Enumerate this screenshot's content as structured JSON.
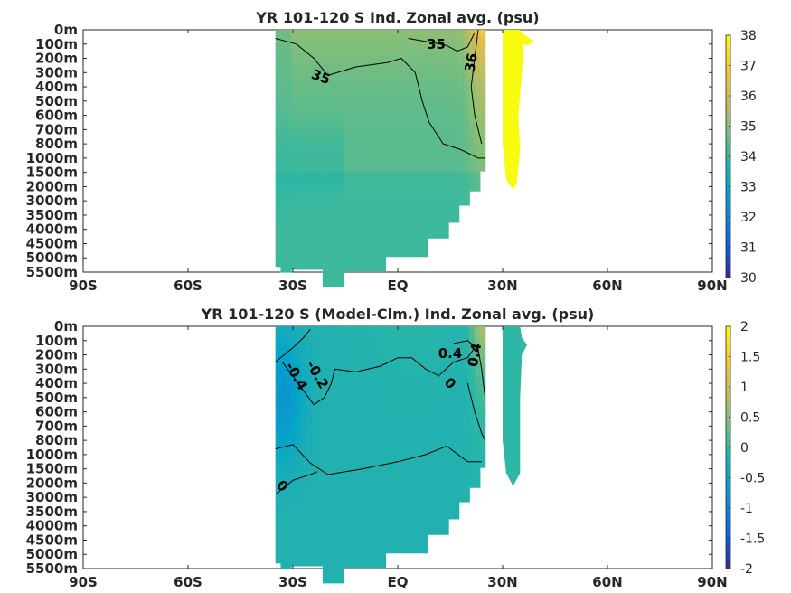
{
  "chart_data": [
    {
      "type": "heatmap",
      "title": "YR 101-120 S Ind. Zonal avg. (psu)",
      "x_ticks": [
        "90S",
        "60S",
        "30S",
        "EQ",
        "30N",
        "60N",
        "90N"
      ],
      "xlim": [
        -90,
        90
      ],
      "y_ticks": [
        "0m",
        "100m",
        "200m",
        "300m",
        "400m",
        "500m",
        "600m",
        "700m",
        "800m",
        "1000m",
        "1500m",
        "2000m",
        "3000m",
        "3500m",
        "4000m",
        "4500m",
        "5000m",
        "5500m"
      ],
      "colorbar": {
        "min": 30,
        "max": 38,
        "ticks": [
          "30",
          "31",
          "32",
          "33",
          "34",
          "35",
          "36",
          "37",
          "38"
        ]
      },
      "colormap": [
        "#352a87",
        "#0f5cdd",
        "#1481d6",
        "#06a4ca",
        "#2eb7a4",
        "#87bf77",
        "#d1bb59",
        "#fec832",
        "#f9fb0e"
      ],
      "contour_labels": [
        {
          "text": "35",
          "lat": 11,
          "depth_index": 1.0,
          "rotation": 0
        },
        {
          "text": "35",
          "lat": -22,
          "depth_index": 3.3,
          "rotation": 20
        },
        {
          "text": "36",
          "lat": 21,
          "depth_index": 2.3,
          "rotation": -80
        }
      ],
      "ocean_region": {
        "lat_min": -35,
        "lat_max": 25
      },
      "marginal_sea": {
        "lat_min": 30,
        "lat_max": 40,
        "value": 39
      }
    },
    {
      "type": "heatmap",
      "title": "YR 101-120 S (Model-Clm.) Ind. Zonal avg. (psu)",
      "x_ticks": [
        "90S",
        "60S",
        "30S",
        "EQ",
        "30N",
        "60N",
        "90N"
      ],
      "xlim": [
        -90,
        90
      ],
      "y_ticks": [
        "0m",
        "100m",
        "200m",
        "300m",
        "400m",
        "500m",
        "600m",
        "700m",
        "800m",
        "1000m",
        "1500m",
        "2000m",
        "3000m",
        "3500m",
        "4000m",
        "4500m",
        "5000m",
        "5500m"
      ],
      "colorbar": {
        "min": -2,
        "max": 2,
        "ticks": [
          "-2",
          "-1.5",
          "-1",
          "-0.5",
          "0",
          "0.5",
          "1",
          "1.5",
          "2"
        ]
      },
      "colormap": [
        "#352a87",
        "#0f5cdd",
        "#1481d6",
        "#06a4ca",
        "#2eb7a4",
        "#87bf77",
        "#d1bb59",
        "#fec832",
        "#f9fb0e"
      ],
      "contour_labels": [
        {
          "text": "-0.4",
          "lat": -29,
          "depth_index": 3.5,
          "rotation": 60
        },
        {
          "text": "-0.2",
          "lat": -23,
          "depth_index": 3.4,
          "rotation": 60
        },
        {
          "text": "0",
          "lat": 15,
          "depth_index": 4.0,
          "rotation": 45
        },
        {
          "text": "0.4",
          "lat": 15,
          "depth_index": 1.9,
          "rotation": 0
        },
        {
          "text": "0.4",
          "lat": 22,
          "depth_index": 2.0,
          "rotation": -80
        },
        {
          "text": "0",
          "lat": -33,
          "depth_index": 11.2,
          "rotation": 45
        }
      ],
      "ocean_region": {
        "lat_min": -35,
        "lat_max": 25
      },
      "marginal_sea": {
        "lat_min": 30,
        "lat_max": 35,
        "value": 0
      }
    }
  ]
}
